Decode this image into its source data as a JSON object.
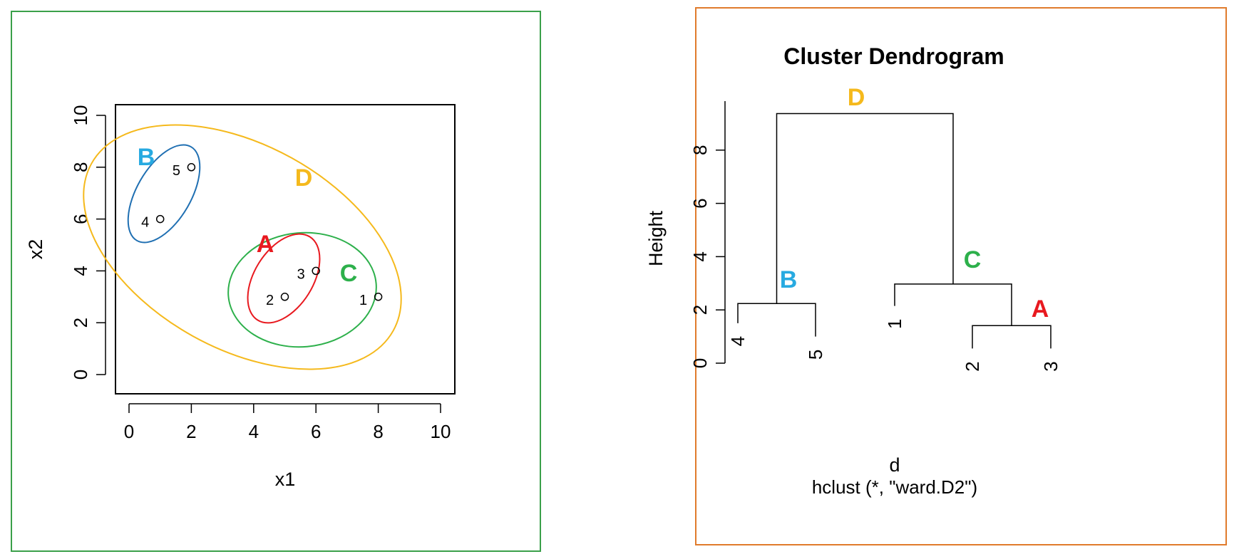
{
  "colors": {
    "scatter_frame": "#3aa04a",
    "dendro_frame": "#e07b2c",
    "A": "#e8191f",
    "B": "#27aae1",
    "B_ellipse": "#1f6fb2",
    "C": "#2db04b",
    "D": "#f5b91c"
  },
  "scatter": {
    "xlabel": "x1",
    "ylabel": "x2",
    "xlim": [
      -0.4,
      10.4
    ],
    "ylim": [
      -0.4,
      10.4
    ],
    "xticks": [
      "0",
      "2",
      "4",
      "6",
      "8",
      "10"
    ],
    "yticks": [
      "0",
      "2",
      "4",
      "6",
      "8",
      "10"
    ]
  },
  "dendrogram": {
    "title": "Cluster Dendrogram",
    "xlabel": "d",
    "sublabel": "hclust (*, \"ward.D2\")",
    "ylabel": "Height",
    "yticks": [
      "0",
      "2",
      "4",
      "6",
      "8"
    ]
  },
  "chart_data": [
    {
      "type": "scatter",
      "xlabel": "x1",
      "ylabel": "x2",
      "points": [
        {
          "label": "1",
          "x": 8,
          "y": 3
        },
        {
          "label": "2",
          "x": 5,
          "y": 3
        },
        {
          "label": "3",
          "x": 6,
          "y": 4
        },
        {
          "label": "4",
          "x": 1,
          "y": 6
        },
        {
          "label": "5",
          "x": 2,
          "y": 8
        }
      ],
      "clusters": [
        {
          "name": "A",
          "members": [
            "2",
            "3"
          ]
        },
        {
          "name": "B",
          "members": [
            "4",
            "5"
          ]
        },
        {
          "name": "C",
          "members": [
            "1",
            "2",
            "3"
          ]
        },
        {
          "name": "D",
          "members": [
            "1",
            "2",
            "3",
            "4",
            "5"
          ]
        }
      ]
    },
    {
      "type": "dendrogram",
      "title": "Cluster Dendrogram",
      "ylabel": "Height",
      "leaf_order": [
        "4",
        "5",
        "1",
        "2",
        "3"
      ],
      "merges": [
        {
          "name": "A",
          "height": 1.41,
          "members": [
            "2",
            "3"
          ]
        },
        {
          "name": "B",
          "height": 2.24,
          "members": [
            "4",
            "5"
          ]
        },
        {
          "name": "C",
          "height": 2.97,
          "members": [
            "1",
            "A"
          ]
        },
        {
          "name": "D",
          "height": 9.37,
          "members": [
            "B",
            "C"
          ]
        }
      ],
      "ylim": [
        0,
        9.4
      ]
    }
  ]
}
